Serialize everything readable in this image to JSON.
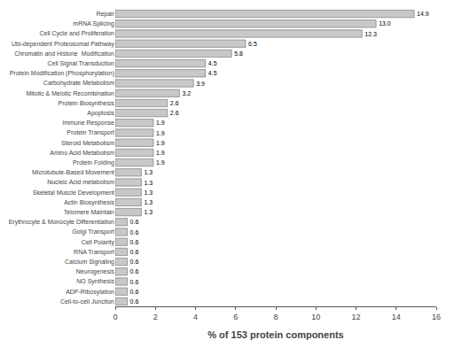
{
  "chart_data": {
    "type": "bar",
    "orientation": "horizontal",
    "categories": [
      "Cell-to-cell Junction",
      "ADP-Ribosylation",
      "NO Synthesis",
      "Neurogenesis",
      "Calcium Signaling",
      "RNA Transport",
      "Cell Polarity",
      "Golgi Transport",
      "Erythrocyte & Monocyte Differentiation",
      "Telomere Maintain",
      "Actin Biosynthesis",
      "Skeletal Muscle Development",
      "Nucleic Acid metabolism",
      "Microtubule-Based Movement",
      "Protein Folding",
      "Amino Acid Metabolism",
      "Steroid Metabolism",
      "Protein Transport",
      "Immune Response",
      "Apoptosis",
      "Protein Biosynthesis",
      "Mitotic & Meiotic Recombination",
      "Carbohydrate Metabolism",
      "Protein Modification (Phosphorylation)",
      "Cell Signal Transduction",
      "Chromatin and Histone  Modification",
      "Ubi-dependent Proteosomal Pathway",
      "Cell Cycle and Proliferation",
      "mRNA Splicing",
      "Repair"
    ],
    "values": [
      0.6,
      0.6,
      0.6,
      0.6,
      0.6,
      0.6,
      0.6,
      0.6,
      0.6,
      1.3,
      1.3,
      1.3,
      1.3,
      1.3,
      1.9,
      1.9,
      1.9,
      1.9,
      1.9,
      2.6,
      2.6,
      3.2,
      3.9,
      4.5,
      4.5,
      5.8,
      6.5,
      12.3,
      13.0,
      14.9
    ],
    "value_labels": [
      "0.6",
      "0.6",
      "0.6",
      "0.6",
      "0.6",
      "0.6",
      "0.6",
      "0.6",
      "0.6",
      "1.3",
      "1.3",
      "1.3",
      "1.3",
      "1.3",
      "1.9",
      "1.9",
      "1.9",
      "1.9",
      "1.9",
      "2.6",
      "2.6",
      "3.2",
      "3.9",
      "4.5",
      "4.5",
      "5.8",
      "6.5",
      "12.3",
      "13.0",
      "14.9"
    ],
    "data_labels": true,
    "color": "#c8c8c8",
    "xlabel": "% of 153 protein components",
    "xlim": [
      0,
      16
    ],
    "xticks": [
      0,
      2,
      4,
      6,
      8,
      10,
      12,
      14,
      16
    ],
    "grid": false
  }
}
